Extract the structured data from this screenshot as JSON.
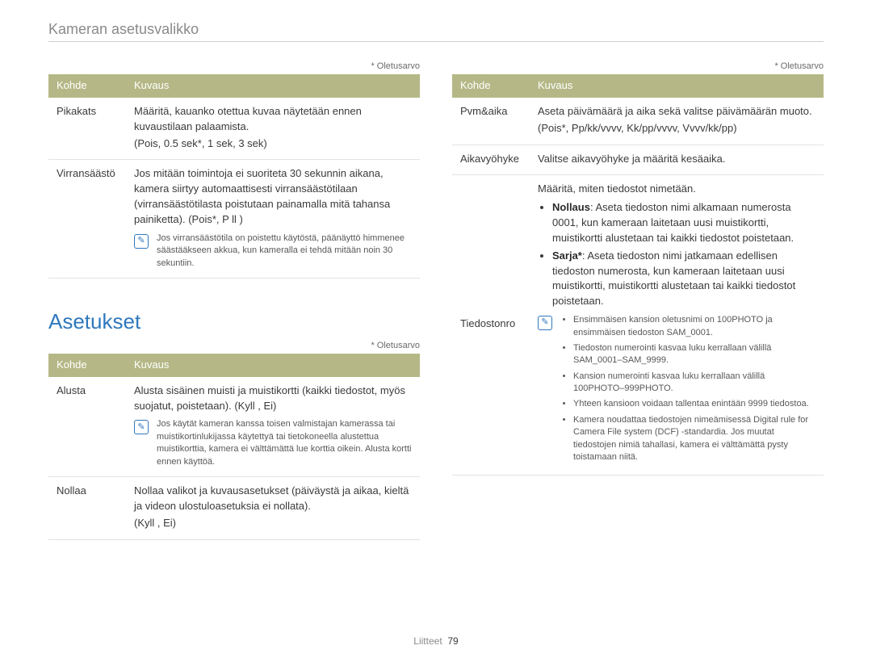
{
  "header": {
    "title": "Kameran asetusvalikko"
  },
  "defaultNote": "* Oletusarvo",
  "left": {
    "table1": {
      "headers": [
        "Kohde",
        "Kuvaus"
      ],
      "rows": [
        {
          "kohde": "Pikakats",
          "kuvaus": "Määritä, kauanko otettua kuvaa näytetään ennen kuvaustilaan palaamista.",
          "options": "(Pois, 0.5 sek*, 1 sek, 3 sek)"
        },
        {
          "kohde": "Virransäästö",
          "kuvaus": "Jos mitään toimintoja ei suoriteta 30 sekunnin aikana, kamera siirtyy automaattisesti virransäästötilaan (virransäästötilasta poistutaan painamalla mitä tahansa painiketta).",
          "options_inline": "(Pois*, P  ll )",
          "note": "Jos virransäästötila on poistettu käytöstä, päänäyttö himmenee säästääkseen akkua, kun kameralla ei tehdä mitään noin 30 sekuntiin."
        }
      ]
    },
    "section_heading": "Asetukset",
    "table2": {
      "headers": [
        "Kohde",
        "Kuvaus"
      ],
      "rows": [
        {
          "kohde": "Alusta",
          "kuvaus": "Alusta sisäinen muisti ja muistikortti (kaikki tiedostot, myös suojatut, poistetaan).",
          "options_inline": "(Kyll , Ei)",
          "note": "Jos käytät kameran kanssa toisen valmistajan kamerassa tai muistikortinlukijassa käytettyä tai tietokoneella alustettua muistikorttia, kamera ei välttämättä lue korttia oikein. Alusta kortti ennen käyttöä."
        },
        {
          "kohde": "Nollaa",
          "kuvaus": "Nollaa valikot ja kuvausasetukset (päiväystä ja aikaa, kieltä ja videon ulostuloasetuksia ei nollata).",
          "options": "(Kyll , Ei)"
        }
      ]
    }
  },
  "right": {
    "table": {
      "headers": [
        "Kohde",
        "Kuvaus"
      ],
      "rows": [
        {
          "kohde": "Pvm&aika",
          "kuvaus": "Aseta päivämäärä ja aika sekä valitse päivämäärän muoto.",
          "options": "(Pois*, Pp/kk/vvvv, Kk/pp/vvvv, Vvvv/kk/pp)"
        },
        {
          "kohde": "Aikavyöhyke",
          "kuvaus": "Valitse aikavyöhyke ja määritä kesäaika."
        },
        {
          "kohde": "Tiedostonro",
          "kuvaus": "Määritä, miten tiedostot nimetään.",
          "bullets": [
            {
              "label": "Nollaus",
              "text": ": Aseta tiedoston nimi alkamaan numerosta 0001, kun kameraan laitetaan uusi muistikortti, muistikortti alustetaan tai kaikki tiedostot poistetaan."
            },
            {
              "label": "Sarja*",
              "text": ": Aseta tiedoston nimi jatkamaan edellisen tiedoston numerosta, kun kameraan laitetaan uusi muistikortti, muistikortti alustetaan tai kaikki tiedostot poistetaan."
            }
          ],
          "note_bullets": [
            "Ensimmäisen kansion oletusnimi on 100PHOTO ja ensimmäisen tiedoston SAM_0001.",
            "Tiedoston numerointi kasvaa luku kerrallaan välillä SAM_0001–SAM_9999.",
            "Kansion numerointi kasvaa luku kerrallaan välillä 100PHOTO–999PHOTO.",
            "Yhteen kansioon voidaan tallentaa enintään 9999 tiedostoa.",
            "Kamera noudattaa tiedostojen nimeämisessä Digital rule for Camera File system (DCF) -standardia. Jos muutat tiedostojen nimiä tahallasi, kamera ei välttämättä pysty toistamaan niitä."
          ]
        }
      ]
    }
  },
  "footer": {
    "label": "Liitteet",
    "page": "79"
  }
}
